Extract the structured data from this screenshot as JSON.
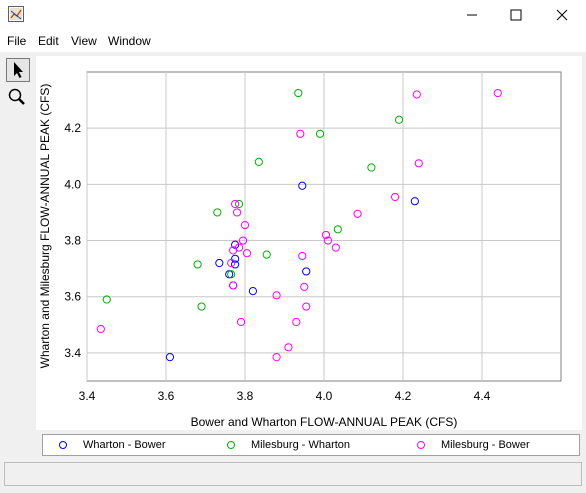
{
  "window": {
    "title": ""
  },
  "menu": {
    "items": [
      "File",
      "Edit",
      "View",
      "Window"
    ]
  },
  "toolbar": {
    "tools": [
      "pointer-icon",
      "zoom-icon"
    ]
  },
  "chart_data": {
    "type": "scatter",
    "title": "",
    "xlabel": "Bower and Wharton FLOW-ANNUAL PEAK (CFS)",
    "ylabel": "Wharton and Milesburg FLOW-ANNUAL PEAK (CFS)",
    "xlim": [
      3.4,
      4.6
    ],
    "ylim": [
      3.3,
      4.4
    ],
    "xticks": [
      "3.4",
      "3.6",
      "3.8",
      "4.0",
      "4.2",
      "4.4"
    ],
    "yticks": [
      "3.4",
      "3.6",
      "3.8",
      "4.0",
      "4.2"
    ],
    "grid": true,
    "legend_position": "bottom",
    "series": [
      {
        "name": "Wharton - Bower",
        "color": "#0000ff",
        "points": [
          [
            3.61,
            3.385
          ],
          [
            3.735,
            3.72
          ],
          [
            3.76,
            3.68
          ],
          [
            3.775,
            3.785
          ],
          [
            3.775,
            3.735
          ],
          [
            3.775,
            3.715
          ],
          [
            3.77,
            3.64
          ],
          [
            3.82,
            3.62
          ],
          [
            3.945,
            3.995
          ],
          [
            3.955,
            3.69
          ],
          [
            4.23,
            3.94
          ]
        ]
      },
      {
        "name": "Milesburg - Wharton",
        "color": "#00b000",
        "points": [
          [
            3.45,
            3.59
          ],
          [
            3.68,
            3.715
          ],
          [
            3.69,
            3.565
          ],
          [
            3.73,
            3.9
          ],
          [
            3.765,
            3.68
          ],
          [
            3.785,
            3.93
          ],
          [
            3.835,
            4.08
          ],
          [
            3.855,
            3.75
          ],
          [
            3.935,
            4.325
          ],
          [
            3.99,
            4.18
          ],
          [
            4.035,
            3.84
          ],
          [
            4.12,
            4.06
          ],
          [
            4.19,
            4.23
          ]
        ]
      },
      {
        "name": "Milesburg - Bower",
        "color": "#ff00ff",
        "points": [
          [
            3.435,
            3.485
          ],
          [
            3.765,
            3.72
          ],
          [
            3.77,
            3.765
          ],
          [
            3.77,
            3.64
          ],
          [
            3.775,
            3.93
          ],
          [
            3.78,
            3.9
          ],
          [
            3.785,
            3.775
          ],
          [
            3.79,
            3.51
          ],
          [
            3.795,
            3.8
          ],
          [
            3.8,
            3.855
          ],
          [
            3.805,
            3.755
          ],
          [
            3.88,
            3.605
          ],
          [
            3.88,
            3.385
          ],
          [
            3.91,
            3.42
          ],
          [
            3.93,
            3.51
          ],
          [
            3.94,
            4.18
          ],
          [
            3.945,
            3.745
          ],
          [
            3.95,
            3.635
          ],
          [
            3.955,
            3.565
          ],
          [
            4.005,
            3.82
          ],
          [
            4.01,
            3.8
          ],
          [
            4.03,
            3.775
          ],
          [
            4.085,
            3.895
          ],
          [
            4.18,
            3.955
          ],
          [
            4.235,
            4.32
          ],
          [
            4.24,
            4.075
          ],
          [
            4.44,
            4.325
          ]
        ]
      }
    ]
  },
  "legend": {
    "items": [
      {
        "label": "Wharton - Bower",
        "color": "#0000ff"
      },
      {
        "label": "Milesburg - Wharton",
        "color": "#00b000"
      },
      {
        "label": "Milesburg - Bower",
        "color": "#ff00ff"
      }
    ]
  }
}
